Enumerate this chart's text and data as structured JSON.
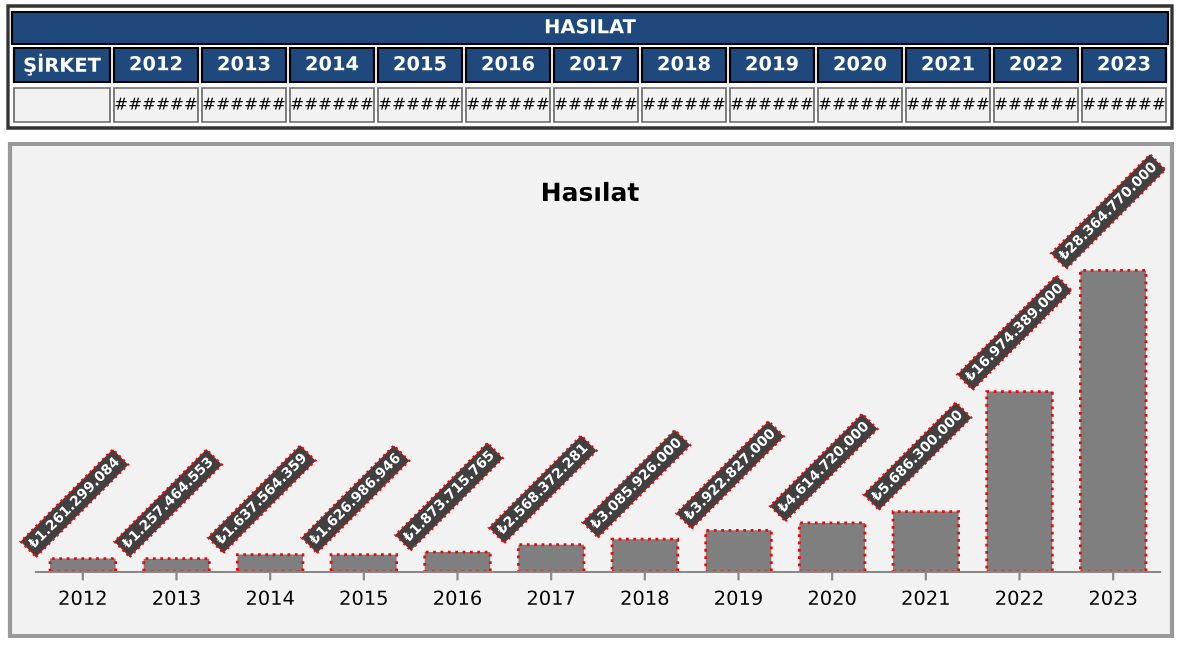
{
  "chart_data": {
    "type": "bar",
    "title": "Hasılat",
    "categories": [
      "2012",
      "2013",
      "2014",
      "2015",
      "2016",
      "2017",
      "2018",
      "2019",
      "2020",
      "2021",
      "2022",
      "2023"
    ],
    "values": [
      1261299084,
      1257464553,
      1637564359,
      1626986946,
      1873715765,
      2568372281,
      3085926000,
      3922827000,
      4614720000,
      5686300000,
      16974389000,
      28364770000
    ],
    "value_labels": [
      "₺1.261.299.084",
      "₺1.257.464.553",
      "₺1.637.564.359",
      "₺1.626.986.946",
      "₺1.873.715.765",
      "₺2.568.372.281",
      "₺3.085.926.000",
      "₺3.922.827.000",
      "₺4.614.720.000",
      "₺5.686.300.000",
      "₺16.974.389.000",
      "₺28.364.770.000"
    ],
    "color": "#7f7f7f",
    "annotations": [
      "HASILAT",
      "ŞİRKET",
      "######",
      "######",
      "######",
      "######",
      "######",
      "######",
      "######",
      "######",
      "######",
      "######",
      "######",
      "######"
    ]
  }
}
